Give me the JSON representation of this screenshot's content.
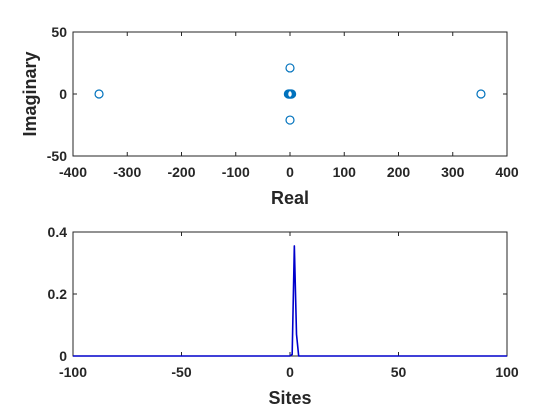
{
  "chart_data": [
    {
      "type": "scatter",
      "xlabel": "Real",
      "ylabel": "Imaginary",
      "xlim": [
        -400,
        400
      ],
      "ylim": [
        -50,
        50
      ],
      "xticks": [
        "-400",
        "-300",
        "-200",
        "-100",
        "0",
        "100",
        "200",
        "300",
        "400"
      ],
      "yticks": [
        "-50",
        "0",
        "50"
      ],
      "marker": "open-circle",
      "color": "#0072BD",
      "points": [
        {
          "x": -352,
          "y": 0
        },
        {
          "x": 352,
          "y": 0
        },
        {
          "x": 0,
          "y": 21
        },
        {
          "x": 0,
          "y": -21
        },
        {
          "x": -3,
          "y": 0
        },
        {
          "x": -2,
          "y": 0
        },
        {
          "x": -1,
          "y": 0
        },
        {
          "x": 0,
          "y": 0
        },
        {
          "x": 1,
          "y": 0
        },
        {
          "x": 2,
          "y": 0
        },
        {
          "x": 3,
          "y": 0
        }
      ]
    },
    {
      "type": "line",
      "xlabel": "Sites",
      "ylabel": "",
      "xlim": [
        -100,
        100
      ],
      "ylim": [
        0,
        0.4
      ],
      "xticks": [
        "-100",
        "-50",
        "0",
        "50",
        "100"
      ],
      "yticks": [
        "0",
        "0.2",
        "0.4"
      ],
      "color": "#0000CC",
      "series": [
        {
          "x": [
            -100,
            0,
            1,
            2,
            3,
            4,
            100
          ],
          "y": [
            0,
            0,
            0.005,
            0.355,
            0.07,
            0,
            0
          ]
        }
      ]
    }
  ]
}
